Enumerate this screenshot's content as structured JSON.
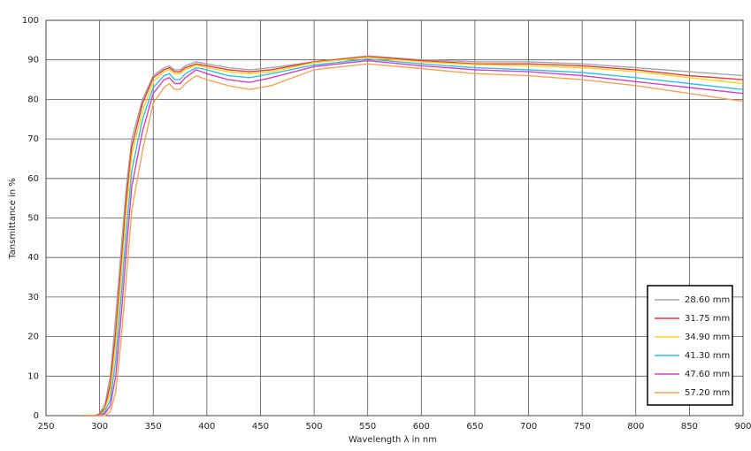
{
  "chart_data": {
    "type": "line",
    "x_label": "Wavelength λ in nm",
    "y_label": "Tansmittance in %",
    "x": [
      285,
      295,
      300,
      305,
      310,
      315,
      320,
      325,
      330,
      340,
      350,
      360,
      365,
      370,
      375,
      380,
      390,
      400,
      420,
      440,
      460,
      500,
      550,
      600,
      650,
      700,
      750,
      800,
      850,
      900
    ],
    "series": [
      {
        "name": "28.60 mm",
        "color": "#a6a6a6",
        "values": [
          0,
          0,
          0.5,
          3,
          10,
          25,
          42,
          58,
          70,
          80,
          86,
          88,
          88.5,
          87.5,
          87.5,
          88.5,
          89.5,
          89,
          88,
          87.5,
          88,
          89.5,
          91,
          90,
          89.5,
          89.5,
          89,
          88,
          87,
          86
        ]
      },
      {
        "name": "31.75 mm",
        "color": "#e03a3a",
        "values": [
          0,
          0,
          0.3,
          2,
          8,
          21,
          38,
          55,
          68,
          79,
          85.5,
          87.5,
          88,
          87,
          87,
          88,
          89,
          88.5,
          87.5,
          87,
          87.5,
          89.5,
          90.8,
          89.8,
          89,
          89,
          88.5,
          87.5,
          86,
          85
        ]
      },
      {
        "name": "34.90 mm",
        "color": "#ffd21f",
        "values": [
          0,
          0,
          0,
          1.5,
          6,
          18,
          35,
          52,
          66,
          77,
          84.5,
          87,
          87.5,
          86.5,
          86.5,
          87.5,
          88.7,
          88,
          87,
          86.5,
          87,
          89.3,
          90.6,
          89.5,
          88.8,
          88.5,
          88,
          87,
          85.5,
          84
        ]
      },
      {
        "name": "41.30 mm",
        "color": "#33bde6",
        "values": [
          0,
          0,
          0,
          1,
          4,
          14,
          30,
          47,
          62,
          75,
          83,
          86,
          86.5,
          85,
          85,
          86.5,
          88,
          87.5,
          86,
          85.5,
          86.5,
          88.7,
          90.2,
          89,
          88,
          87.5,
          86.8,
          85.5,
          84,
          82.5
        ]
      },
      {
        "name": "47.60 mm",
        "color": "#d142c4",
        "values": [
          0,
          0,
          0,
          0.5,
          2.5,
          10,
          25,
          42,
          58,
          72,
          81.5,
          85,
          85.5,
          84,
          84,
          85.5,
          87.5,
          86.5,
          85,
          84.3,
          85.5,
          88.3,
          89.8,
          88.5,
          87.5,
          87,
          86,
          84.5,
          83,
          81.5
        ]
      },
      {
        "name": "57.20 mm",
        "color": "#f5a256",
        "values": [
          0,
          0,
          0,
          0,
          1,
          6,
          19,
          35,
          52,
          67,
          79,
          83,
          84,
          82.5,
          82.5,
          84,
          86,
          85,
          83.5,
          82.5,
          83.5,
          87.5,
          89,
          87.8,
          86.5,
          86,
          85,
          83.5,
          81.5,
          79.5
        ]
      }
    ],
    "xlim": [
      250,
      900
    ],
    "xticks": [
      250,
      300,
      350,
      400,
      450,
      500,
      550,
      600,
      650,
      700,
      750,
      800,
      850,
      900
    ],
    "ylim": [
      0,
      100
    ],
    "yticks": [
      0,
      10,
      20,
      30,
      40,
      50,
      60,
      70,
      80,
      90,
      100
    ],
    "grid": true,
    "legend": "lower right"
  }
}
